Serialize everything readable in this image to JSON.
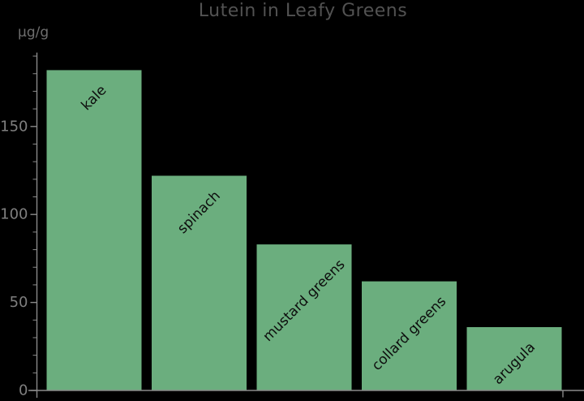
{
  "chart_data": {
    "type": "bar",
    "title": "Lutein in Leafy Greens",
    "ylabel": "µg/g",
    "xlabel": "",
    "categories": [
      "kale",
      "spinach",
      "mustard greens",
      "collard greens",
      "arugula"
    ],
    "values": [
      182,
      122,
      83,
      62,
      36
    ],
    "yticks": [
      0,
      50,
      100,
      150
    ],
    "ytick_labels": [
      "0",
      "50",
      "100",
      "150"
    ],
    "minor_tick_step": 10,
    "ylim": [
      0,
      192
    ],
    "grid": "off",
    "legend": "none",
    "bar_labels_position": "inside-top-rotated-45",
    "colors": {
      "background": "#000000",
      "bar_fill": "#6bae7e",
      "bar_label_text": "#0d0d0d",
      "axis_line": "#8a8a8a",
      "tick_label_text": "#7f7f7f",
      "title_text": "#525252",
      "unit_label_text": "#6e6e6e"
    }
  }
}
